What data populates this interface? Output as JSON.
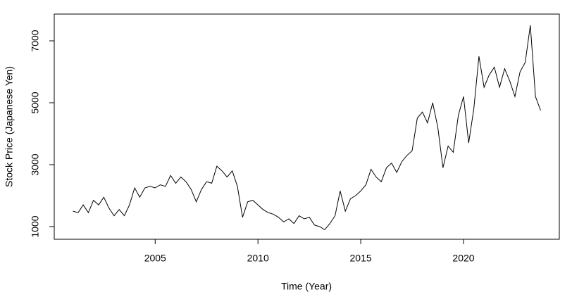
{
  "chart_data": {
    "type": "line",
    "x_label": "Time (Year)",
    "y_label": "Stock Price (Japanese Yen)",
    "xlim": [
      2000.09,
      2024.66
    ],
    "xticks": [
      2005,
      2010,
      2015,
      2020
    ],
    "ylim": [
      591,
      7864
    ],
    "yticks": [
      1000,
      3000,
      5000,
      7000
    ],
    "color": "#000000",
    "x": [
      2001.0,
      2001.25,
      2001.5,
      2001.75,
      2002.0,
      2002.25,
      2002.5,
      2002.75,
      2003.0,
      2003.25,
      2003.5,
      2003.75,
      2004.0,
      2004.25,
      2004.5,
      2004.75,
      2005.0,
      2005.25,
      2005.5,
      2005.75,
      2006.0,
      2006.25,
      2006.5,
      2006.75,
      2007.0,
      2007.25,
      2007.5,
      2007.75,
      2008.0,
      2008.25,
      2008.5,
      2008.75,
      2009.0,
      2009.25,
      2009.5,
      2009.75,
      2010.0,
      2010.25,
      2010.5,
      2010.75,
      2011.0,
      2011.25,
      2011.5,
      2011.75,
      2012.0,
      2012.25,
      2012.5,
      2012.75,
      2013.0,
      2013.25,
      2013.5,
      2013.75,
      2014.0,
      2014.25,
      2014.5,
      2014.75,
      2015.0,
      2015.25,
      2015.5,
      2015.75,
      2016.0,
      2016.25,
      2016.5,
      2016.75,
      2017.0,
      2017.25,
      2017.5,
      2017.75,
      2018.0,
      2018.25,
      2018.5,
      2018.75,
      2019.0,
      2019.25,
      2019.5,
      2019.75,
      2020.0,
      2020.25,
      2020.5,
      2020.75,
      2021.0,
      2021.25,
      2021.5,
      2021.75,
      2022.0,
      2022.25,
      2022.5,
      2022.75,
      2023.0,
      2023.25,
      2023.5,
      2023.75
    ],
    "values": [
      1500,
      1450,
      1700,
      1450,
      1850,
      1700,
      1950,
      1600,
      1350,
      1550,
      1350,
      1700,
      2250,
      1950,
      2250,
      2300,
      2250,
      2350,
      2300,
      2650,
      2400,
      2600,
      2450,
      2200,
      1800,
      2200,
      2450,
      2400,
      2950,
      2800,
      2600,
      2800,
      2300,
      1300,
      1800,
      1850,
      1700,
      1550,
      1450,
      1400,
      1300,
      1150,
      1250,
      1100,
      1350,
      1250,
      1300,
      1050,
      1000,
      900,
      1100,
      1350,
      2150,
      1500,
      1900,
      2000,
      2150,
      2350,
      2850,
      2600,
      2450,
      2900,
      3050,
      2750,
      3100,
      3300,
      3450,
      4500,
      4700,
      4350,
      5000,
      4200,
      2900,
      3600,
      3400,
      4600,
      5200,
      3700,
      4800,
      6500,
      5500,
      5900,
      6150,
      5500,
      6100,
      5700,
      5200,
      6000,
      6300,
      7500,
      5200,
      4750
    ]
  }
}
